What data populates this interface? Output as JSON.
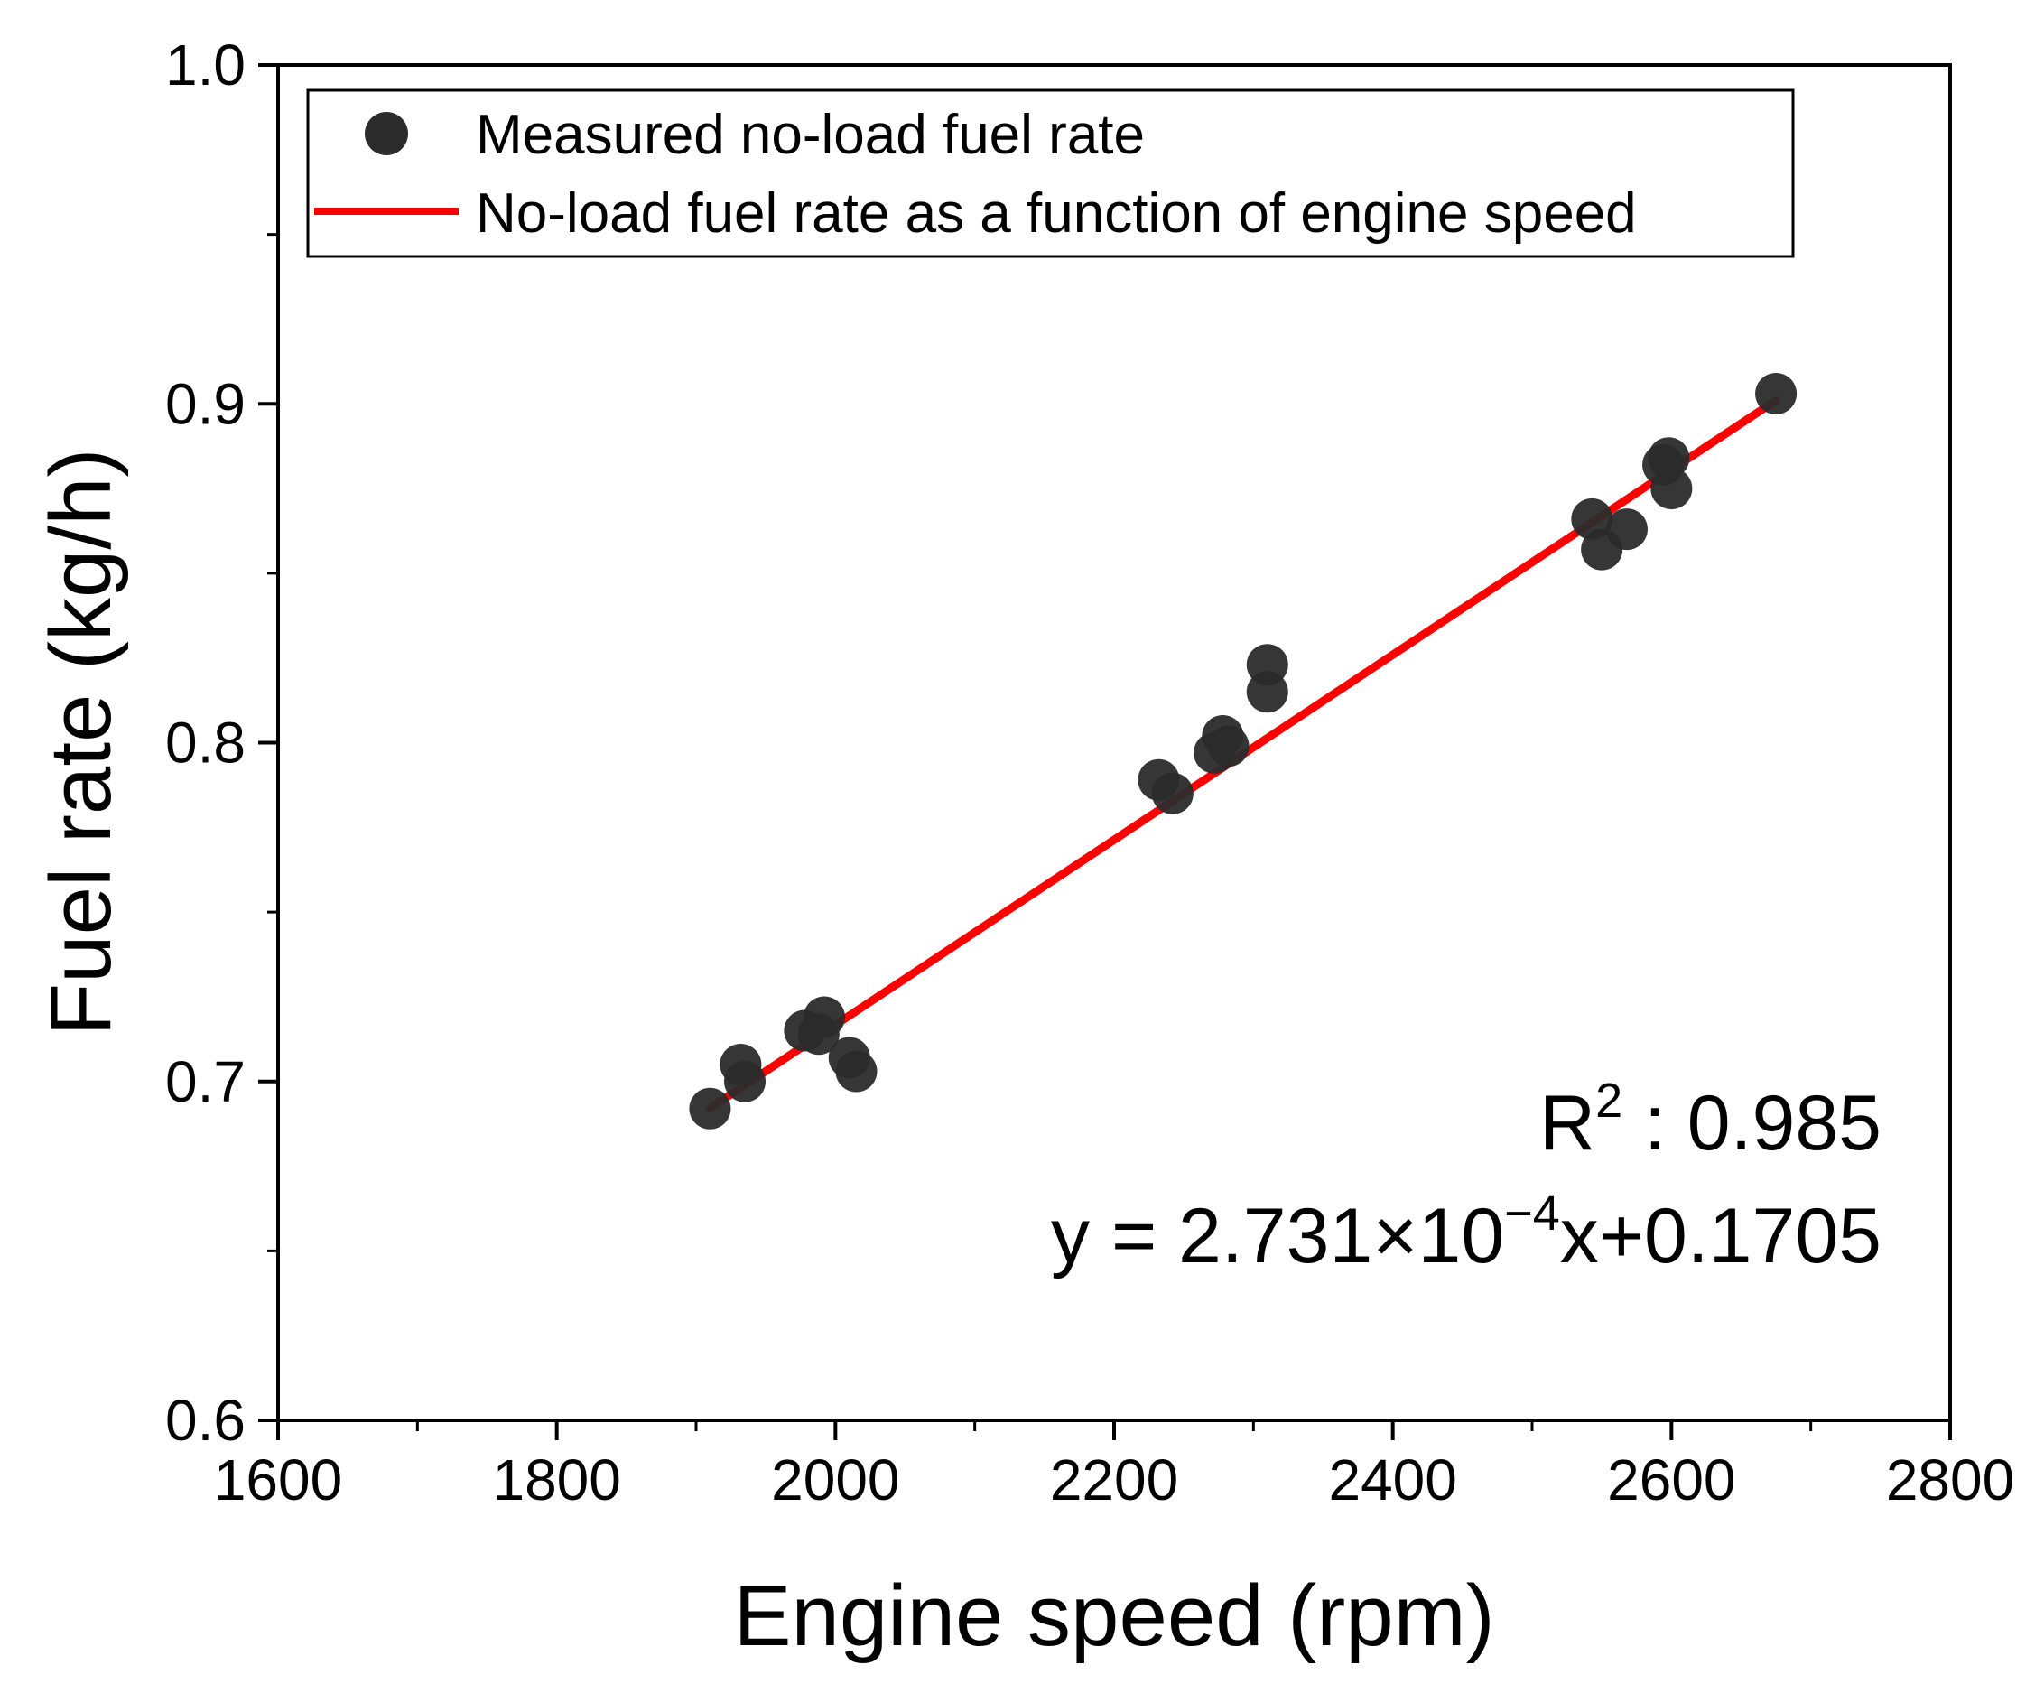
{
  "chart_data": {
    "type": "scatter",
    "title": "",
    "xlabel": "Engine speed (rpm)",
    "ylabel": "Fuel rate (kg/h)",
    "xlim": [
      1600,
      2800
    ],
    "ylim": [
      0.6,
      1.0
    ],
    "x_ticks": [
      1600,
      1800,
      2000,
      2200,
      2400,
      2600,
      2800
    ],
    "x_tick_labels": [
      "1600",
      "1800",
      "2000",
      "2200",
      "2400",
      "2600",
      "2800"
    ],
    "x_minor_ticks": [
      1700,
      1900,
      2100,
      2300,
      2500,
      2700
    ],
    "y_ticks": [
      0.6,
      0.7,
      0.8,
      0.9,
      1.0
    ],
    "y_tick_labels": [
      "0.6",
      "0.7",
      "0.8",
      "0.9",
      "1.0"
    ],
    "y_minor_ticks": [
      0.65,
      0.75,
      0.85,
      0.95
    ],
    "grid": false,
    "legend_position": "top",
    "series": [
      {
        "name": "Measured no-load fuel rate",
        "kind": "scatter",
        "color": "#2b2b2b",
        "points": [
          {
            "x": 1910,
            "y": 0.692
          },
          {
            "x": 1932,
            "y": 0.705
          },
          {
            "x": 1935,
            "y": 0.7
          },
          {
            "x": 1978,
            "y": 0.715
          },
          {
            "x": 1992,
            "y": 0.719
          },
          {
            "x": 1988,
            "y": 0.714
          },
          {
            "x": 2010,
            "y": 0.707
          },
          {
            "x": 2015,
            "y": 0.703
          },
          {
            "x": 2232,
            "y": 0.789
          },
          {
            "x": 2242,
            "y": 0.785
          },
          {
            "x": 2272,
            "y": 0.797
          },
          {
            "x": 2278,
            "y": 0.802
          },
          {
            "x": 2282,
            "y": 0.799
          },
          {
            "x": 2310,
            "y": 0.823
          },
          {
            "x": 2310,
            "y": 0.815
          },
          {
            "x": 2543,
            "y": 0.866
          },
          {
            "x": 2550,
            "y": 0.857
          },
          {
            "x": 2568,
            "y": 0.863
          },
          {
            "x": 2594,
            "y": 0.882
          },
          {
            "x": 2598,
            "y": 0.884
          },
          {
            "x": 2600,
            "y": 0.875
          },
          {
            "x": 2675,
            "y": 0.903
          }
        ]
      },
      {
        "name": "No-load fuel rate as a function of engine speed",
        "kind": "line",
        "color": "#ff0000",
        "slope": 0.0002731,
        "intercept": 0.1705,
        "x_range": [
          1910,
          2675
        ]
      }
    ],
    "annotations": {
      "r2_label": "R",
      "r2_superscript": "2",
      "r2_value": " : 0.985",
      "equation_prefix": "y = 2.731×10",
      "equation_exponent": "−4",
      "equation_suffix": "x+0.1705"
    }
  }
}
